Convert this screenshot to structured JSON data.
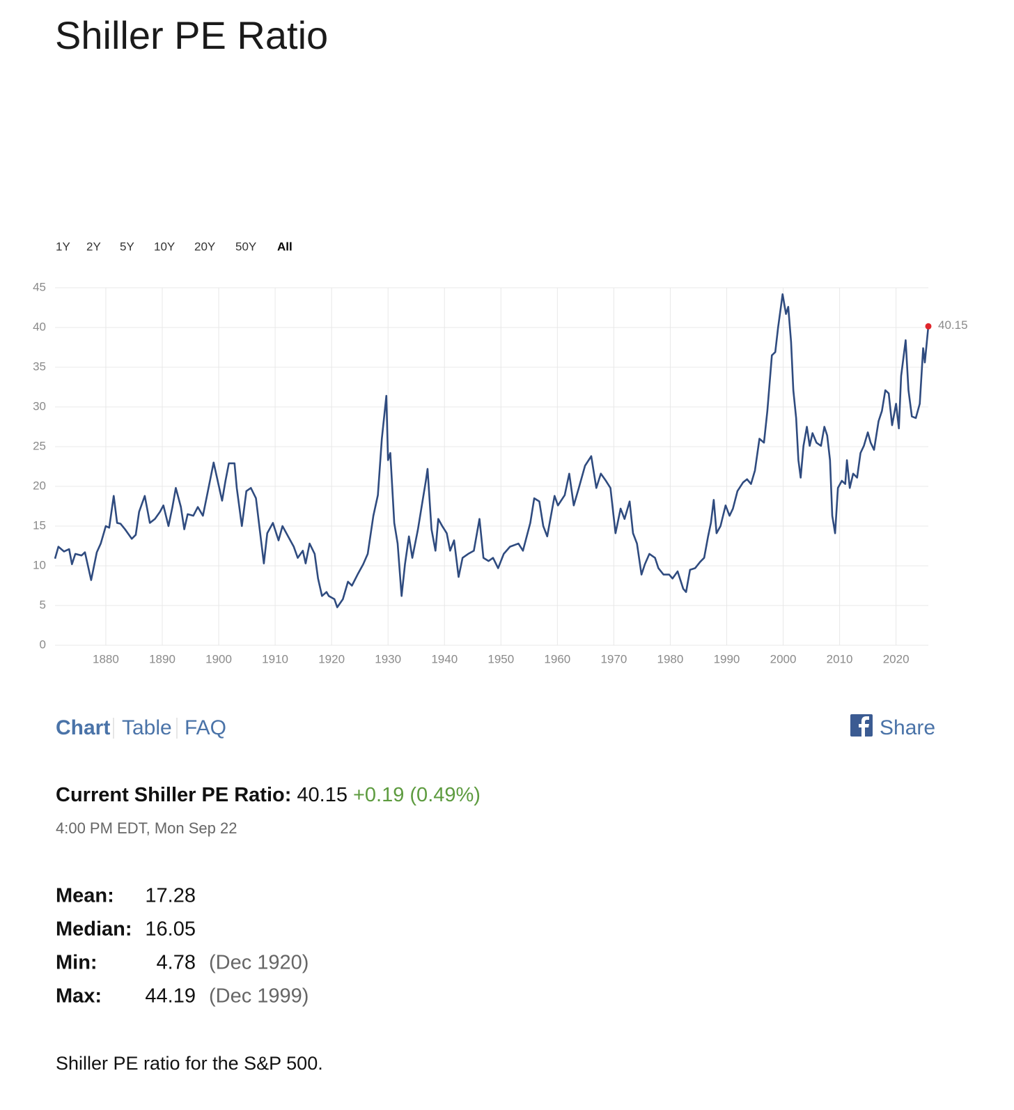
{
  "title": "Shiller PE Ratio",
  "range_buttons": [
    "1Y",
    "2Y",
    "5Y",
    "10Y",
    "20Y",
    "50Y",
    "All"
  ],
  "selected_range": 6,
  "chart_data": {
    "type": "line",
    "color": "#2f4b7f",
    "marker_color": "#e0262c",
    "grid": true,
    "xlim": [
      1871,
      2025.72
    ],
    "ylim": [
      0,
      45
    ],
    "xticks": [
      1880,
      1890,
      1900,
      1910,
      1920,
      1930,
      1940,
      1950,
      1960,
      1970,
      1980,
      1990,
      2000,
      2010,
      2020
    ],
    "yticks": [
      0,
      5,
      10,
      15,
      20,
      25,
      30,
      35,
      40,
      45
    ],
    "x": [
      1871.0,
      1871.6,
      1872.6,
      1873.5,
      1874.0,
      1874.6,
      1875.7,
      1876.3,
      1877.4,
      1878.4,
      1879.1,
      1880.0,
      1880.6,
      1881.4,
      1882.0,
      1882.6,
      1883.4,
      1884.6,
      1885.3,
      1885.9,
      1886.9,
      1887.8,
      1888.7,
      1889.6,
      1890.2,
      1891.1,
      1891.8,
      1892.4,
      1893.3,
      1893.9,
      1894.5,
      1895.5,
      1896.3,
      1897.2,
      1898.0,
      1899.1,
      1900.1,
      1900.6,
      1901.2,
      1901.8,
      1902.8,
      1903.2,
      1904.1,
      1904.9,
      1905.7,
      1906.6,
      1907.5,
      1908.0,
      1908.6,
      1909.6,
      1910.6,
      1911.3,
      1912.3,
      1913.3,
      1914.0,
      1914.9,
      1915.4,
      1916.1,
      1917.0,
      1917.6,
      1918.3,
      1919.1,
      1919.5,
      1920.5,
      1921.0,
      1922.0,
      1922.9,
      1923.6,
      1924.6,
      1925.6,
      1926.4,
      1927.4,
      1928.2,
      1928.9,
      1929.7,
      1930.0,
      1930.4,
      1931.1,
      1931.7,
      1932.4,
      1933.0,
      1933.7,
      1934.3,
      1935.3,
      1936.1,
      1936.7,
      1937.0,
      1937.7,
      1938.4,
      1938.9,
      1939.6,
      1940.4,
      1941.0,
      1941.7,
      1942.5,
      1943.2,
      1944.2,
      1945.2,
      1946.2,
      1946.9,
      1947.8,
      1948.6,
      1949.5,
      1950.5,
      1951.6,
      1953.1,
      1953.9,
      1955.2,
      1955.9,
      1956.8,
      1957.5,
      1958.2,
      1959.5,
      1960.1,
      1961.3,
      1962.1,
      1962.9,
      1963.8,
      1964.9,
      1966.0,
      1966.9,
      1967.7,
      1968.6,
      1969.4,
      1970.3,
      1971.2,
      1971.9,
      1972.8,
      1973.4,
      1974.1,
      1974.9,
      1975.5,
      1976.3,
      1977.3,
      1977.9,
      1978.8,
      1979.8,
      1980.4,
      1981.3,
      1982.3,
      1982.8,
      1983.5,
      1984.4,
      1985.3,
      1986.0,
      1986.7,
      1987.2,
      1987.7,
      1988.2,
      1988.9,
      1989.8,
      1990.5,
      1991.1,
      1991.9,
      1992.9,
      1993.6,
      1994.3,
      1995.0,
      1995.8,
      1996.6,
      1997.2,
      1998.0,
      1998.6,
      1999.1,
      1999.6,
      1999.9,
      2000.5,
      2000.9,
      2001.4,
      2001.8,
      2002.3,
      2002.7,
      2003.1,
      2003.6,
      2004.2,
      2004.7,
      2005.2,
      2005.9,
      2006.7,
      2007.3,
      2007.8,
      2008.3,
      2008.7,
      2009.2,
      2009.7,
      2010.4,
      2011.0,
      2011.3,
      2011.8,
      2012.4,
      2013.1,
      2013.7,
      2014.3,
      2015.0,
      2015.5,
      2016.1,
      2016.9,
      2017.5,
      2018.1,
      2018.7,
      2019.3,
      2020.0,
      2020.5,
      2020.9,
      2021.7,
      2022.2,
      2022.8,
      2023.5,
      2024.2,
      2024.8,
      2025.1,
      2025.72
    ],
    "values": [
      10.9,
      12.4,
      11.8,
      12.1,
      10.2,
      11.5,
      11.3,
      11.7,
      8.2,
      11.7,
      12.8,
      15.0,
      14.8,
      18.8,
      15.4,
      15.3,
      14.6,
      13.4,
      13.9,
      16.8,
      18.8,
      15.4,
      15.9,
      16.8,
      17.6,
      15.0,
      17.4,
      19.8,
      17.4,
      14.6,
      16.5,
      16.3,
      17.4,
      16.3,
      19.1,
      23.0,
      19.8,
      18.2,
      20.7,
      22.9,
      22.9,
      19.8,
      15.0,
      19.4,
      19.8,
      18.5,
      13.2,
      10.3,
      14.1,
      15.4,
      13.2,
      15.0,
      13.7,
      12.4,
      11.0,
      11.9,
      10.3,
      12.8,
      11.5,
      8.4,
      6.2,
      6.7,
      6.2,
      5.8,
      4.78,
      5.8,
      8.0,
      7.5,
      8.9,
      10.2,
      11.5,
      16.3,
      18.9,
      26.0,
      31.4,
      23.3,
      24.2,
      15.4,
      12.8,
      6.2,
      10.2,
      13.7,
      11.0,
      14.6,
      18.1,
      20.7,
      22.2,
      14.6,
      11.9,
      15.9,
      15.0,
      14.1,
      11.9,
      13.2,
      8.6,
      11.0,
      11.5,
      11.9,
      15.9,
      11.0,
      10.6,
      11.0,
      9.7,
      11.5,
      12.4,
      12.8,
      11.9,
      15.4,
      18.5,
      18.1,
      15.0,
      13.7,
      18.8,
      17.6,
      18.9,
      21.6,
      17.6,
      19.8,
      22.6,
      23.8,
      19.8,
      21.6,
      20.7,
      19.8,
      14.1,
      17.2,
      15.9,
      18.1,
      14.1,
      12.8,
      8.9,
      10.2,
      11.5,
      11.0,
      9.7,
      8.9,
      8.9,
      8.4,
      9.3,
      7.1,
      6.7,
      9.5,
      9.7,
      10.5,
      11.0,
      13.7,
      15.4,
      18.3,
      14.1,
      15.0,
      17.6,
      16.3,
      17.2,
      19.4,
      20.5,
      20.9,
      20.3,
      22.0,
      26.0,
      25.5,
      29.5,
      36.5,
      36.9,
      40.0,
      42.6,
      44.19,
      41.7,
      42.6,
      38.2,
      32.1,
      28.6,
      23.3,
      21.1,
      25.1,
      27.5,
      25.1,
      26.7,
      25.5,
      25.1,
      27.5,
      26.4,
      23.3,
      16.3,
      14.1,
      19.8,
      20.7,
      20.3,
      23.3,
      19.8,
      21.6,
      21.1,
      24.2,
      25.1,
      26.8,
      25.5,
      24.6,
      28.2,
      29.5,
      32.1,
      31.7,
      27.7,
      30.4,
      27.3,
      33.9,
      38.4,
      32.1,
      28.8,
      28.6,
      30.4,
      37.4,
      35.6,
      40.15
    ]
  },
  "tabs": [
    "Chart",
    "Table",
    "FAQ"
  ],
  "share": "Share",
  "current": {
    "label": "Current Shiller PE Ratio:",
    "value": 40.15,
    "change": "+0.19 (0.49%)"
  },
  "timestamp": "4:00 PM EDT, Mon Sep 22",
  "stats": [
    {
      "label": "Mean:",
      "value": 17.28
    },
    {
      "label": "Median:",
      "value": 16.05
    },
    {
      "label": "Min:",
      "value": 4.78,
      "date": "(Dec 1920)"
    },
    {
      "label": "Max:",
      "value": 44.19,
      "date": "(Dec 1999)"
    }
  ],
  "footer": "Shiller PE ratio for the S&P 500."
}
